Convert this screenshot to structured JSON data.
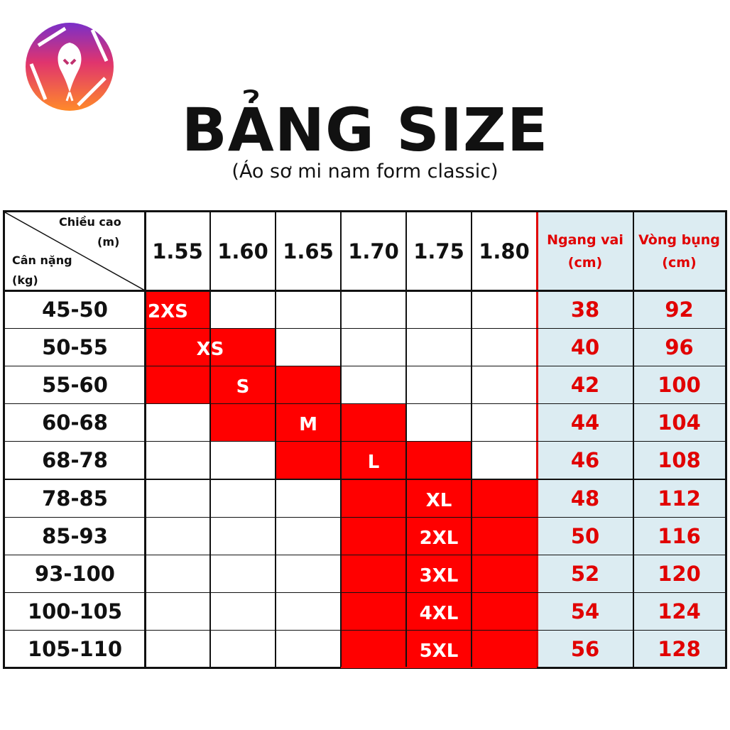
{
  "header": {
    "title": "BẢNG SIZE",
    "subtitle": "(Áo sơ mi nam form classic)"
  },
  "colors": {
    "accent_red": "#ff0000",
    "measure_text": "#e10000",
    "measure_bg": "#dcecf2"
  },
  "logo": {
    "icon": "snake-shutter-logo-icon"
  },
  "table": {
    "corner": {
      "height_label": "Chiều cao",
      "height_unit": "(m)",
      "weight_label": "Cân nặng",
      "weight_unit": "(kg)"
    },
    "heights": [
      "1.55",
      "1.60",
      "1.65",
      "1.70",
      "1.75",
      "1.80"
    ],
    "measure_headers": [
      {
        "line1": "Ngang vai",
        "line2": "(cm)"
      },
      {
        "line1": "Vòng bụng",
        "line2": "(cm)"
      }
    ],
    "rows": [
      {
        "weight": "45-50",
        "size": "2XS",
        "start_col": 0,
        "span": 1,
        "shoulder": "38",
        "waist": "92"
      },
      {
        "weight": "50-55",
        "size": "XS",
        "start_col": 0,
        "span": 2,
        "shoulder": "40",
        "waist": "96"
      },
      {
        "weight": "55-60",
        "size": "S",
        "start_col": 0,
        "span": 3,
        "shoulder": "42",
        "waist": "100"
      },
      {
        "weight": "60-68",
        "size": "M",
        "start_col": 1,
        "span": 3,
        "shoulder": "44",
        "waist": "104"
      },
      {
        "weight": "68-78",
        "size": "L",
        "start_col": 2,
        "span": 3,
        "shoulder": "46",
        "waist": "108"
      },
      {
        "weight": "78-85",
        "size": "XL",
        "start_col": 3,
        "span": 3,
        "shoulder": "48",
        "waist": "112"
      },
      {
        "weight": "85-93",
        "size": "2XL",
        "start_col": 3,
        "span": 3,
        "shoulder": "50",
        "waist": "116"
      },
      {
        "weight": "93-100",
        "size": "3XL",
        "start_col": 3,
        "span": 3,
        "shoulder": "52",
        "waist": "120"
      },
      {
        "weight": "100-105",
        "size": "4XL",
        "start_col": 3,
        "span": 3,
        "shoulder": "54",
        "waist": "124"
      },
      {
        "weight": "105-110",
        "size": "5XL",
        "start_col": 3,
        "span": 3,
        "shoulder": "56",
        "waist": "128"
      }
    ]
  }
}
